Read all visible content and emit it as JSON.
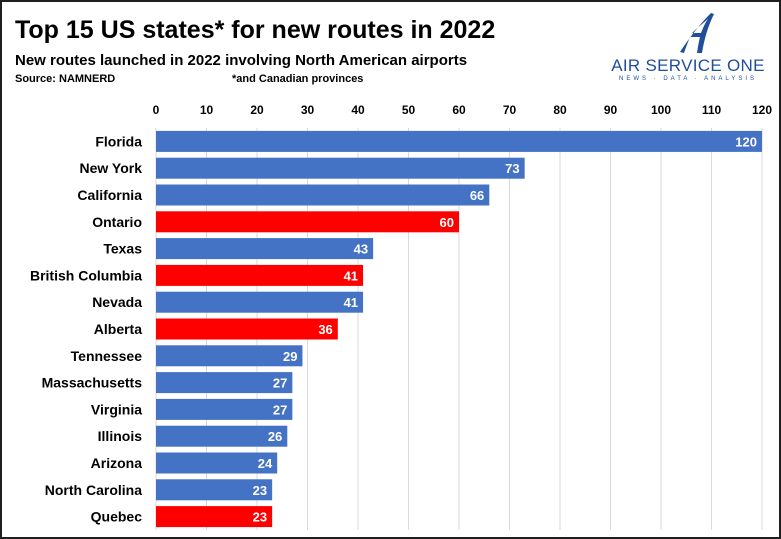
{
  "title": "Top 15 US states* for new routes in 2022",
  "subtitle": "New routes launched in 2022 involving North American airports",
  "source": "Source: NAMNERD",
  "footnote": "*and Canadian provinces",
  "logo": {
    "name": "AIR SERVICE ONE",
    "tagline": "NEWS · DATA · ANALYSIS",
    "color": "#1f4e9b"
  },
  "colors": {
    "us_state": "#4472c4",
    "canadian_province": "#ff0000"
  },
  "chart_data": {
    "type": "bar",
    "orientation": "horizontal",
    "axis_position": "top",
    "grid": true,
    "xlim": [
      0,
      120
    ],
    "xticks": [
      0,
      10,
      20,
      30,
      40,
      50,
      60,
      70,
      80,
      90,
      100,
      110,
      120
    ],
    "categories": [
      "Florida",
      "New York",
      "California",
      "Ontario",
      "Texas",
      "British Columbia",
      "Nevada",
      "Alberta",
      "Tennessee",
      "Massachusetts",
      "Virginia",
      "Illinois",
      "Arizona",
      "North Carolina",
      "Quebec"
    ],
    "values": [
      120,
      73,
      66,
      60,
      43,
      41,
      41,
      36,
      29,
      27,
      27,
      26,
      24,
      23,
      23
    ],
    "bar_colors": [
      "#4472c4",
      "#4472c4",
      "#4472c4",
      "#ff0000",
      "#4472c4",
      "#ff0000",
      "#4472c4",
      "#ff0000",
      "#4472c4",
      "#4472c4",
      "#4472c4",
      "#4472c4",
      "#4472c4",
      "#4472c4",
      "#ff0000"
    ]
  }
}
